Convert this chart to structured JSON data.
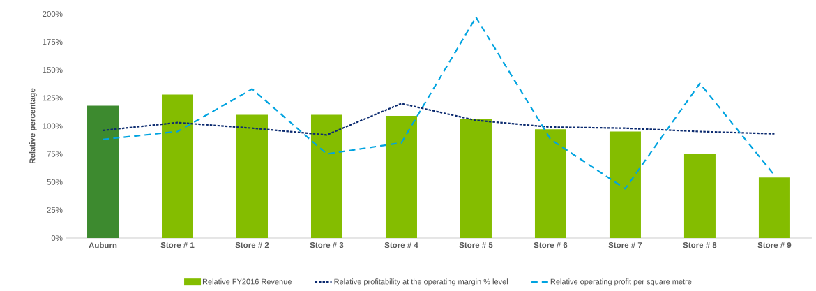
{
  "chart_data": {
    "type": "bar",
    "ylabel": "Relative percentage",
    "categories": [
      "Auburn",
      "Store # 1",
      "Store # 2",
      "Store # 3",
      "Store # 4",
      "Store # 5",
      "Store # 6",
      "Store # 7",
      "Store # 8",
      "Store # 9"
    ],
    "series": [
      {
        "name": "Relative FY2016 Revenue",
        "type": "bar",
        "color": "#84bd00",
        "colors": [
          "#3d8a2f",
          "#84bd00",
          "#84bd00",
          "#84bd00",
          "#84bd00",
          "#84bd00",
          "#84bd00",
          "#84bd00",
          "#84bd00",
          "#84bd00"
        ],
        "values": [
          118,
          128,
          110,
          110,
          109,
          106,
          97,
          95,
          75,
          54
        ]
      },
      {
        "name": "Relative profitability at the operating margin % level",
        "type": "line",
        "color": "#0b2a6f",
        "line_style": "dotted",
        "values": [
          96,
          103,
          98,
          92,
          120,
          105,
          99,
          98,
          95,
          93
        ]
      },
      {
        "name": "Relative operating profit per square metre",
        "type": "line",
        "color": "#00a3e0",
        "line_style": "dashed",
        "values": [
          88,
          95,
          133,
          75,
          85,
          197,
          88,
          44,
          138,
          56
        ]
      }
    ],
    "ylim": [
      0,
      200
    ],
    "yticks": [
      {
        "value": 0,
        "label": "0%"
      },
      {
        "value": 25,
        "label": "25%"
      },
      {
        "value": 50,
        "label": "50%"
      },
      {
        "value": 75,
        "label": "75%"
      },
      {
        "value": 100,
        "label": "100%"
      },
      {
        "value": 125,
        "label": "125%"
      },
      {
        "value": 150,
        "label": "150%"
      },
      {
        "value": 175,
        "label": "175%"
      },
      {
        "value": 200,
        "label": "200%"
      }
    ],
    "legend": "bottom",
    "marker": "none"
  }
}
